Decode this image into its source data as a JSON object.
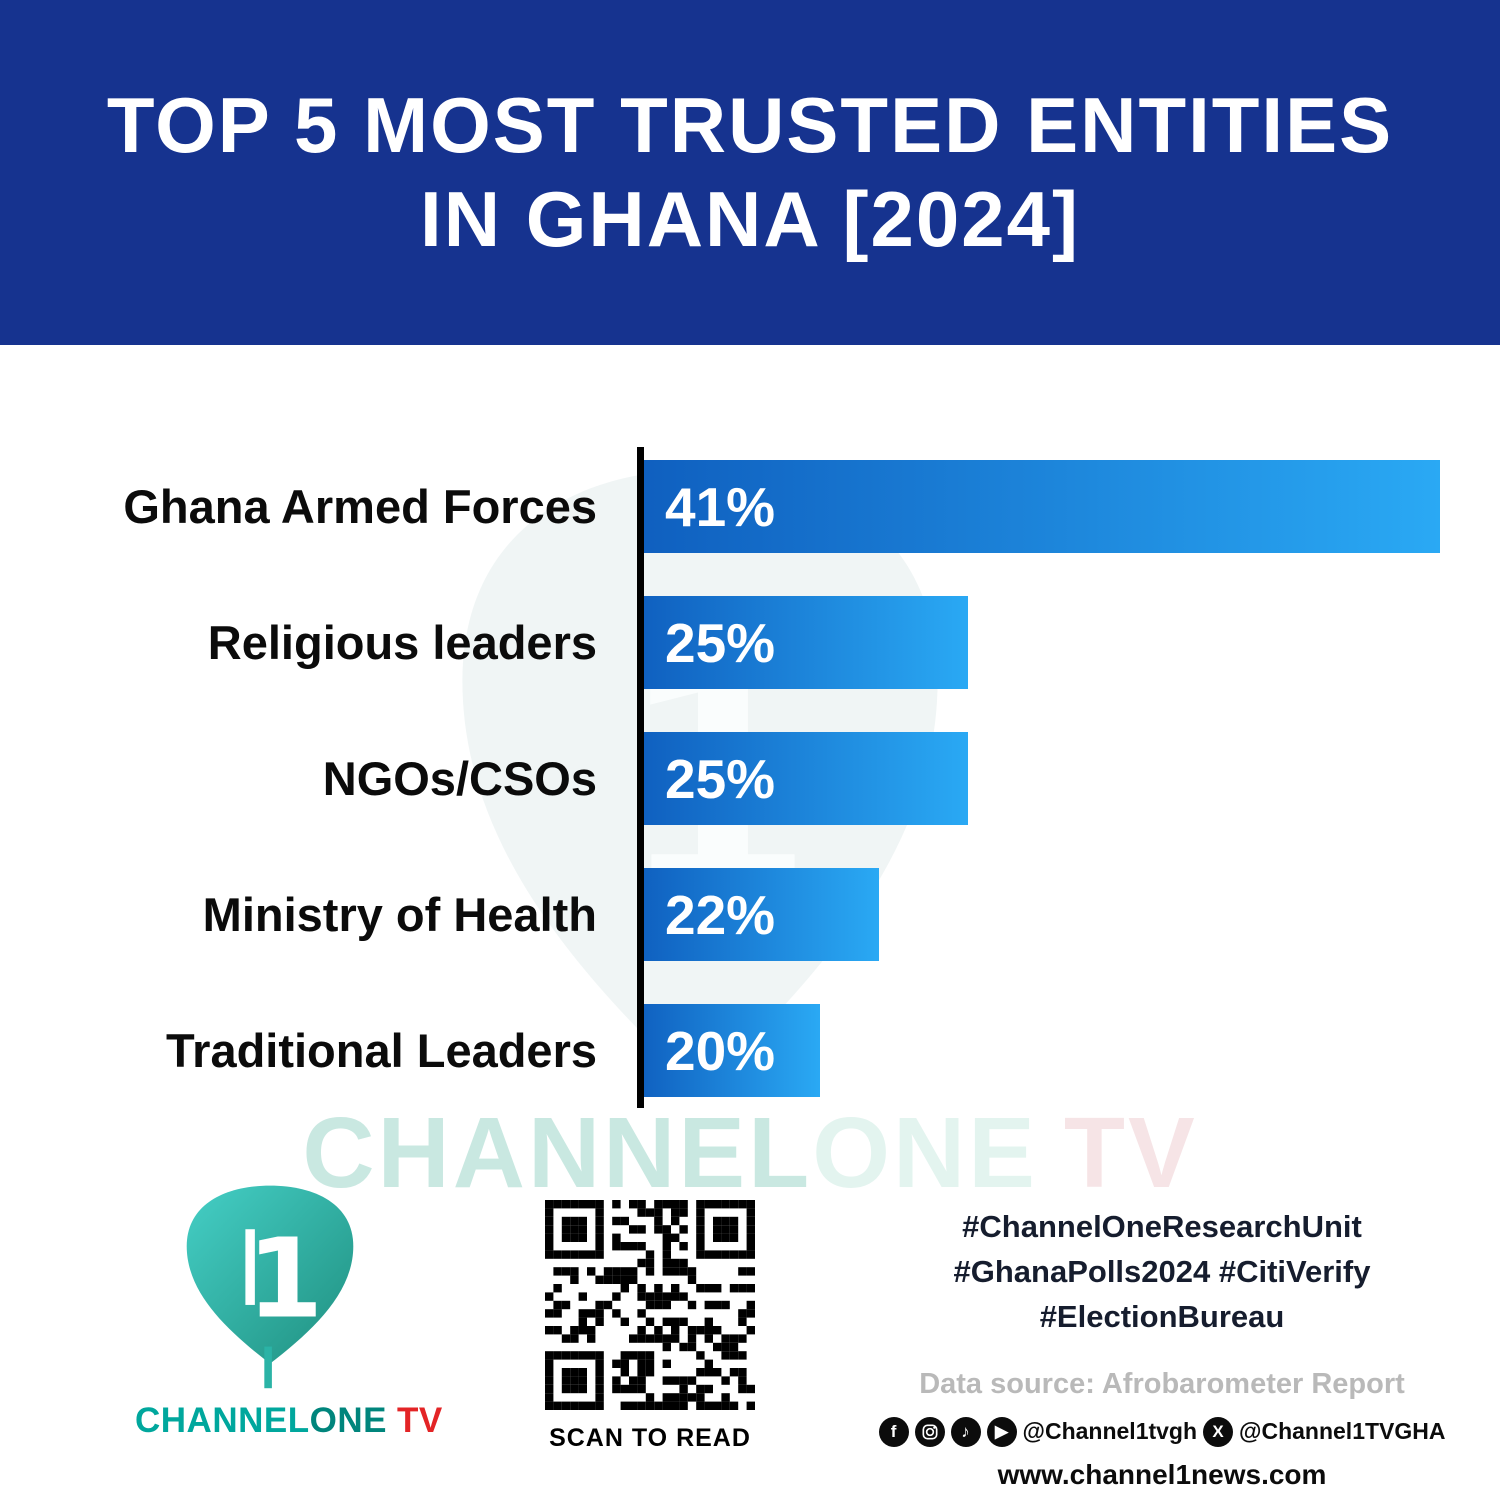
{
  "header": {
    "title_line1": "TOP 5 MOST TRUSTED ENTITIES",
    "title_line2": "IN GHANA [2024]"
  },
  "chart_data": {
    "type": "bar",
    "orientation": "horizontal",
    "title": "Top 5 Most Trusted Entities in Ghana [2024]",
    "categories": [
      "Ghana Armed Forces",
      "Religious leaders",
      "NGOs/CSOs",
      "Ministry of Health",
      "Traditional Leaders"
    ],
    "values": [
      41,
      25,
      25,
      22,
      20
    ],
    "value_labels": [
      "41%",
      "25%",
      "25%",
      "22%",
      "20%"
    ],
    "unit": "%",
    "xlim": [
      13.8,
      41
    ],
    "grid": false,
    "legend": false,
    "bar_color_start": "#0F5FBF",
    "bar_color_end": "#2AA9F4"
  },
  "watermark": {
    "part1": "CHANNEL",
    "part2": "ONE",
    "part3": "TV"
  },
  "footer": {
    "logo": {
      "numeral": "1",
      "part1": "CHANNEL",
      "part2": "ONE",
      "part3": "TV"
    },
    "qr_caption": "SCAN TO READ",
    "hashtags": [
      "#ChannelOneResearchUnit",
      "#GhanaPolls2024 #CitiVerify",
      "#ElectionBureau"
    ],
    "data_source": "Data source: Afrobarometer Report",
    "social": {
      "facebook_glyph": "f",
      "tiktok_glyph": "♪",
      "youtube_glyph": "▶",
      "x_glyph": "X",
      "handle1": "@Channel1tvgh",
      "handle2": "@Channel1TVGHA"
    },
    "website": "www.channel1news.com"
  },
  "colors": {
    "banner": "#16338F",
    "bar_gradient_start": "#0F5FBF",
    "bar_gradient_end": "#2AA9F4",
    "logo_teal": "#00A79D",
    "logo_red": "#E32426",
    "watermark_teal": "#C9E8E1"
  }
}
